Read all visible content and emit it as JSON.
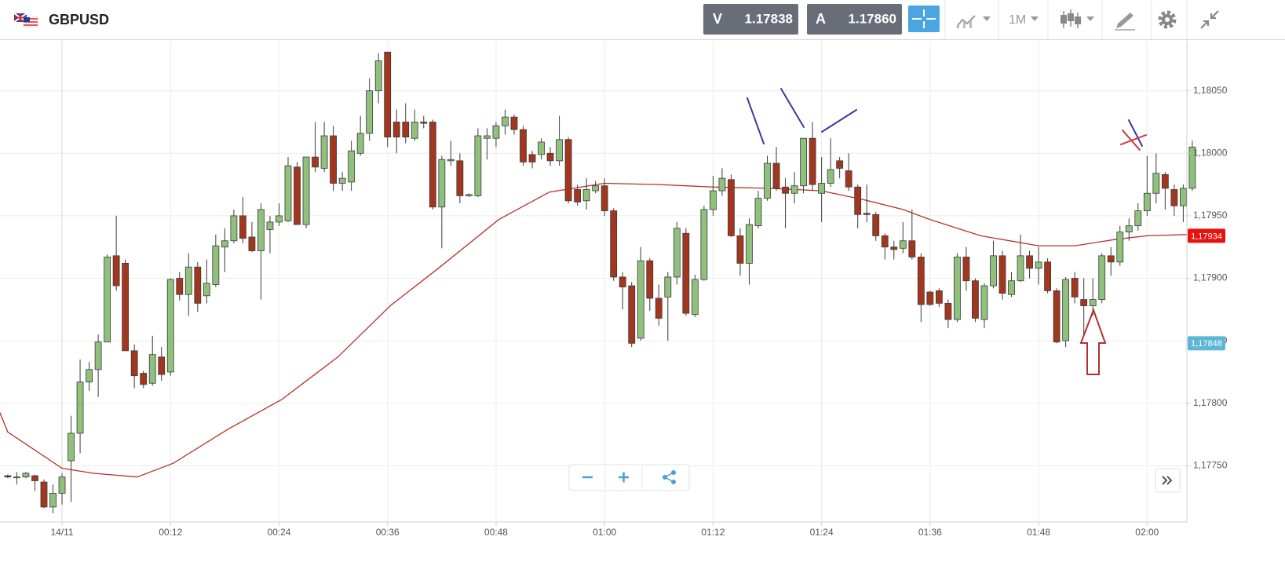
{
  "header": {
    "symbol": "GBPUSD",
    "bid": {
      "label": "V",
      "price": "1.17838"
    },
    "ask": {
      "label": "A",
      "price": "1.17860"
    },
    "timeframe": "1M"
  },
  "chart_data": {
    "type": "candlestick",
    "x": [
      -6,
      -5,
      -4,
      -3,
      -2,
      -1,
      0,
      1,
      2,
      3,
      4,
      5,
      6,
      7,
      8,
      9,
      10,
      11,
      12,
      13,
      14,
      15,
      16,
      17,
      18,
      19,
      20,
      21,
      22,
      23,
      24,
      25,
      26,
      27,
      28,
      29,
      30,
      31,
      32,
      33,
      34,
      35,
      36,
      37,
      38,
      39,
      40,
      41,
      42,
      43,
      44,
      45,
      46,
      47,
      48,
      49,
      50,
      51,
      52,
      53,
      54,
      55,
      56,
      57,
      58,
      59,
      60,
      61,
      62,
      63,
      64,
      65,
      66,
      67,
      68,
      69,
      70,
      71,
      72,
      73,
      74,
      75,
      76,
      77,
      78,
      79,
      80,
      81,
      82,
      83,
      84,
      85,
      86,
      87,
      88,
      89,
      90,
      91,
      92,
      93,
      94,
      95,
      96,
      97,
      98,
      99,
      100,
      101,
      102,
      103,
      104,
      105,
      106,
      107,
      108,
      109,
      110,
      111,
      112,
      113,
      114,
      115,
      116,
      117,
      118,
      119,
      120,
      121,
      122,
      123,
      124,
      125
    ],
    "open": [
      1.17742,
      1.17741,
      1.17741,
      1.17742,
      1.17737,
      1.17717,
      1.17728,
      1.17754,
      1.17776,
      1.17817,
      1.17827,
      1.17849,
      1.17918,
      1.17912,
      1.17842,
      1.17824,
      1.17816,
      1.17837,
      1.17825,
      1.179,
      1.17887,
      1.17909,
      1.17886,
      1.17895,
      1.17925,
      1.1793,
      1.1795,
      1.17933,
      1.17922,
      1.17939,
      1.17945,
      1.17946,
      1.17989,
      1.17943,
      1.17997,
      1.17988,
      1.18014,
      1.17976,
      1.17977,
      1.18,
      1.18016,
      1.1805,
      1.18081,
      1.18025,
      1.18025,
      1.18012,
      1.18025,
      1.18025,
      1.17957,
      1.17994,
      1.17994,
      1.17966,
      1.17966,
      1.18012,
      1.18012,
      1.18022,
      1.18029,
      1.18019,
      1.17999,
      1.17999,
      1.18,
      1.17994,
      1.18011,
      1.17971,
      1.17962,
      1.1797,
      1.17974,
      1.17954,
      1.17901,
      1.17894,
      1.17852,
      1.17914,
      1.17884,
      1.17885,
      1.17901,
      1.17936,
      1.17871,
      1.17899,
      1.17955,
      1.1797,
      1.17979,
      1.17934,
      1.17912,
      1.17942,
      1.17964,
      1.17992,
      1.17973,
      1.17968,
      1.17974,
      1.18012,
      1.17968,
      1.17976,
      1.17994,
      1.17986,
      1.17973,
      1.17952,
      1.17951,
      1.17934,
      1.17925,
      1.17924,
      1.1793,
      1.17917,
      1.17889,
      1.1789,
      1.1788,
      1.17867,
      1.17917,
      1.17898,
      1.17867,
      1.17894,
      1.17918,
      1.17887,
      1.17898,
      1.17918,
      1.17908,
      1.17913,
      1.1789,
      1.1785,
      1.179,
      1.17883,
      1.17878,
      1.17883,
      1.17918,
      1.17913,
      1.17937,
      1.17942,
      1.17954,
      1.17968,
      1.17983,
      1.17971,
      1.17958,
      1.17972
    ],
    "high": [
      1.17743,
      1.17745,
      1.17745,
      1.17743,
      1.17739,
      1.17735,
      1.17744,
      1.1779,
      1.17835,
      1.17833,
      1.17855,
      1.17919,
      1.1795,
      1.17915,
      1.17847,
      1.17826,
      1.17854,
      1.17845,
      1.179,
      1.17905,
      1.1792,
      1.17913,
      1.17915,
      1.17935,
      1.1794,
      1.17955,
      1.17965,
      1.17945,
      1.1796,
      1.1795,
      1.1796,
      1.17997,
      1.17993,
      1.17997,
      1.18025,
      1.18025,
      1.18022,
      1.17985,
      1.1801,
      1.1803,
      1.1806,
      1.1808,
      1.18081,
      1.18035,
      1.1804,
      1.18035,
      1.1803,
      1.18027,
      1.17998,
      1.1801,
      1.18,
      1.17968,
      1.1802,
      1.1802,
      1.18025,
      1.18035,
      1.18031,
      1.18022,
      1.18002,
      1.18012,
      1.18005,
      1.1803,
      1.18013,
      1.17975,
      1.1798,
      1.17978,
      1.1798,
      1.17956,
      1.17905,
      1.17897,
      1.17925,
      1.17916,
      1.17895,
      1.17905,
      1.17945,
      1.1794,
      1.17903,
      1.17958,
      1.17982,
      1.17988,
      1.17983,
      1.1794,
      1.17948,
      1.1797,
      1.17998,
      1.18005,
      1.1798,
      1.17985,
      1.18012,
      1.18025,
      1.17997,
      1.18012,
      1.17997,
      1.18,
      1.17975,
      1.17975,
      1.17953,
      1.17936,
      1.1793,
      1.17945,
      1.17955,
      1.1792,
      1.1789,
      1.17892,
      1.17883,
      1.1792,
      1.17925,
      1.179,
      1.17896,
      1.1793,
      1.17922,
      1.17905,
      1.17935,
      1.17922,
      1.17925,
      1.17916,
      1.17892,
      1.17901,
      1.17905,
      1.179,
      1.179,
      1.1792,
      1.17925,
      1.17942,
      1.17948,
      1.1796,
      1.17998,
      1.18,
      1.17985,
      1.17975,
      1.17975,
      1.1801
    ],
    "low": [
      1.1774,
      1.17735,
      1.1774,
      1.1773,
      1.17716,
      1.17712,
      1.17719,
      1.17721,
      1.1776,
      1.1781,
      1.17805,
      1.17849,
      1.1789,
      1.17842,
      1.17812,
      1.17812,
      1.17814,
      1.17818,
      1.17822,
      1.17882,
      1.1787,
      1.17873,
      1.1788,
      1.17893,
      1.17905,
      1.17928,
      1.17928,
      1.17921,
      1.17883,
      1.1792,
      1.17942,
      1.17945,
      1.17943,
      1.1794,
      1.17985,
      1.17985,
      1.1797,
      1.1797,
      1.1797,
      1.17998,
      1.1801,
      1.1804,
      1.18005,
      1.18,
      1.18008,
      1.1801,
      1.1802,
      1.17955,
      1.17924,
      1.1799,
      1.1796,
      1.17965,
      1.17965,
      1.17995,
      1.18005,
      1.18015,
      1.18015,
      1.1799,
      1.17988,
      1.17995,
      1.1799,
      1.1799,
      1.1796,
      1.17958,
      1.17955,
      1.17968,
      1.1795,
      1.17898,
      1.17875,
      1.17845,
      1.1785,
      1.17874,
      1.17862,
      1.1785,
      1.17895,
      1.1787,
      1.17869,
      1.17898,
      1.1795,
      1.17966,
      1.17933,
      1.17902,
      1.17895,
      1.1794,
      1.17962,
      1.1797,
      1.1794,
      1.1796,
      1.17968,
      1.1797,
      1.17945,
      1.17973,
      1.1798,
      1.1797,
      1.1794,
      1.17945,
      1.1793,
      1.17915,
      1.17915,
      1.1792,
      1.17915,
      1.17865,
      1.17878,
      1.17877,
      1.1786,
      1.17865,
      1.1789,
      1.17865,
      1.1786,
      1.17892,
      1.17883,
      1.17885,
      1.17897,
      1.179,
      1.17895,
      1.17888,
      1.17848,
      1.17845,
      1.1788,
      1.17855,
      1.1787,
      1.1788,
      1.17902,
      1.1791,
      1.1793,
      1.17938,
      1.1795,
      1.1796,
      1.17955,
      1.1795,
      1.17945,
      1.1797
    ],
    "close": [
      1.17741,
      1.17741,
      1.17744,
      1.17738,
      1.17717,
      1.17728,
      1.17741,
      1.17776,
      1.17817,
      1.17827,
      1.17849,
      1.17917,
      1.17894,
      1.17842,
      1.17822,
      1.17815,
      1.17839,
      1.17823,
      1.17899,
      1.17887,
      1.17909,
      1.1788,
      1.17896,
      1.17926,
      1.1793,
      1.1795,
      1.17932,
      1.17922,
      1.17955,
      1.17945,
      1.1795,
      1.1799,
      1.17943,
      1.17997,
      1.17989,
      1.18014,
      1.17976,
      1.1798,
      1.18002,
      1.18016,
      1.1805,
      1.18074,
      1.18013,
      1.18013,
      1.18013,
      1.18025,
      1.18024,
      1.17957,
      1.17995,
      1.17995,
      1.17966,
      1.17967,
      1.18014,
      1.18014,
      1.18022,
      1.18029,
      1.18019,
      1.17993,
      1.17993,
      1.18009,
      1.17994,
      1.18011,
      1.17962,
      1.17961,
      1.17971,
      1.17974,
      1.17954,
      1.17901,
      1.17893,
      1.17848,
      1.17914,
      1.17884,
      1.17868,
      1.17901,
      1.1794,
      1.17872,
      1.17899,
      1.17955,
      1.1797,
      1.1798,
      1.17934,
      1.17912,
      1.17943,
      1.17964,
      1.17992,
      1.17972,
      1.17968,
      1.17974,
      1.18012,
      1.17975,
      1.17976,
      1.17987,
      1.17988,
      1.17973,
      1.17951,
      1.17951,
      1.17934,
      1.17925,
      1.17923,
      1.1793,
      1.17917,
      1.17879,
      1.17879,
      1.1788,
      1.17867,
      1.17917,
      1.17898,
      1.17868,
      1.17894,
      1.17918,
      1.17888,
      1.17898,
      1.17918,
      1.17908,
      1.17913,
      1.1789,
      1.17849,
      1.17899,
      1.17885,
      1.17878,
      1.17883,
      1.17918,
      1.17913,
      1.17937,
      1.17942,
      1.17954,
      1.17968,
      1.17984,
      1.17972,
      1.17958,
      1.17972,
      1.18005
    ],
    "up_color": "#8fc07c",
    "down_color": "#a3361f",
    "overlay": {
      "color": "#b8302a",
      "x": [
        -6.9,
        -6,
        0,
        3.4,
        8.3,
        12.3,
        18.3,
        24.3,
        30.5,
        36.3,
        41.8,
        48.3,
        53.9,
        60,
        66,
        72,
        78.2,
        84,
        88.6,
        93,
        96,
        101.6,
        108,
        112,
        116.4,
        120,
        124.4
      ],
      "values": [
        1.17793,
        1.17777,
        1.17748,
        1.17744,
        1.17741,
        1.17752,
        1.17779,
        1.17803,
        1.17837,
        1.17878,
        1.17909,
        1.17947,
        1.17969,
        1.17976,
        1.17975,
        1.17973,
        1.17972,
        1.1797,
        1.17963,
        1.17955,
        1.17947,
        1.17934,
        1.17926,
        1.17926,
        1.17931,
        1.17934,
        1.17935
      ]
    },
    "xlim": [
      -6.86,
      124.4
    ],
    "xticks": [
      {
        "value": 0,
        "label": "14/11"
      },
      {
        "value": 12,
        "label": "00:12"
      },
      {
        "value": 24,
        "label": "00:24"
      },
      {
        "value": 36,
        "label": "00:36"
      },
      {
        "value": 48,
        "label": "00:48"
      },
      {
        "value": 60,
        "label": "01:00"
      },
      {
        "value": 72,
        "label": "01:12"
      },
      {
        "value": 84,
        "label": "01:24"
      },
      {
        "value": 96,
        "label": "01:36"
      },
      {
        "value": 108,
        "label": "01:48"
      },
      {
        "value": 120,
        "label": "02:00"
      }
    ],
    "ylim": [
      1.17705,
      1.1809
    ],
    "yticks": [
      {
        "value": 1.1775,
        "label": "1,17750"
      },
      {
        "value": 1.178,
        "label": "1,17800"
      },
      {
        "value": 1.1785,
        "label": "1,17850"
      },
      {
        "value": 1.179,
        "label": "1,17900"
      },
      {
        "value": 1.1795,
        "label": "1,17950"
      },
      {
        "value": 1.18,
        "label": "1,18000"
      },
      {
        "value": 1.1805,
        "label": "1,18050"
      }
    ],
    "grid": true,
    "price_tags": [
      {
        "value": 1.17934,
        "label": "1,17934",
        "color": "#e8110f"
      },
      {
        "value": 1.17848,
        "label": "1,17848",
        "color": "#5db6d6"
      }
    ]
  }
}
